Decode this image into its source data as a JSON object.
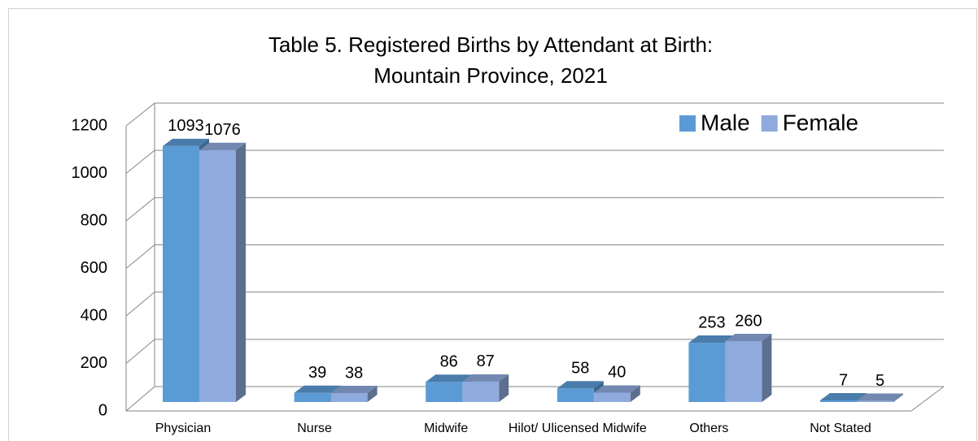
{
  "chart_data": {
    "type": "bar3d",
    "title": "Table 5. Registered Births by Attendant at Birth:",
    "subtitle": "Mountain Province, 2021",
    "categories": [
      "Physician",
      "Nurse",
      "Midwife",
      "Hilot/ Ulicensed Midwife",
      "Others",
      "Not Stated"
    ],
    "series": [
      {
        "name": "Male",
        "color": "#5b9bd5",
        "values": [
          1093,
          39,
          86,
          58,
          253,
          7
        ]
      },
      {
        "name": "Female",
        "color": "#8faadc",
        "values": [
          1076,
          38,
          87,
          40,
          260,
          5
        ]
      }
    ],
    "ylim": [
      0,
      1200
    ],
    "yticks": [
      0,
      200,
      400,
      600,
      800,
      1000,
      1200
    ],
    "grid": true,
    "legend": "top-right"
  }
}
